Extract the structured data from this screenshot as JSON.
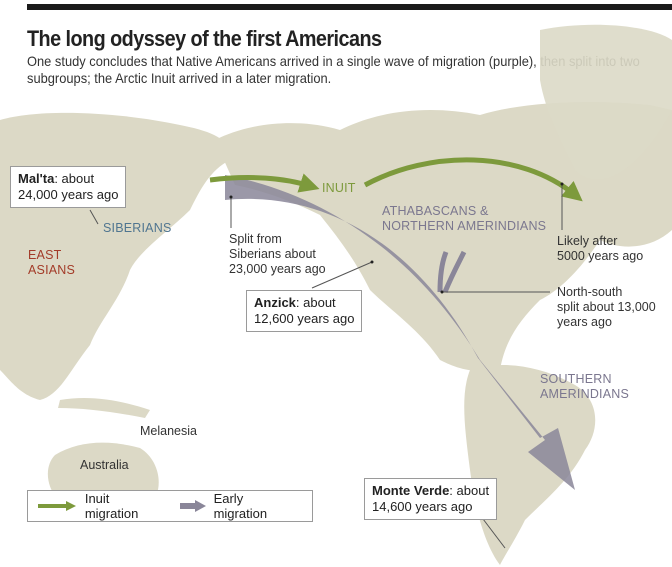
{
  "header": {
    "title": "The long odyssey of the first Americans",
    "subtitle": "One study concludes that Native Americans arrived in a single wave of migration (purple), then split into two subgroups; the Arctic Inuit arrived in a later migration."
  },
  "colors": {
    "land": "#dcd9c6",
    "inuit": "#7d9a3c",
    "early": "#8a8699",
    "siberians": "#4f7590",
    "east_asians": "#a33b28",
    "athabascans": "#7b778f"
  },
  "callouts": {
    "malta": {
      "name": "Mal'ta",
      "text": ": about",
      "line2": "24,000 years ago"
    },
    "anzick": {
      "name": "Anzick",
      "text": ": about",
      "line2": "12,600 years ago"
    },
    "monte_verde": {
      "name": "Monte Verde",
      "text": ": about",
      "line2": "14,600 years ago"
    }
  },
  "groups": {
    "siberians": "SIBERIANS",
    "east_asians": [
      "EAST",
      "ASIANS"
    ],
    "inuit": "INUIT",
    "athabascans": [
      "ATHABASCANS &",
      "NORTHERN AMERINDIANS"
    ],
    "southern": [
      "SOUTHERN",
      "AMERINDIANS"
    ]
  },
  "notes": {
    "split_siberians": [
      "Split from",
      "Siberians about",
      "23,000 years ago"
    ],
    "likely_after": [
      "Likely after",
      "5000 years ago"
    ],
    "north_south": [
      "North-south",
      "split about 13,000",
      "years ago"
    ]
  },
  "places": {
    "melanesia": "Melanesia",
    "australia": "Australia"
  },
  "legend": {
    "inuit": "Inuit migration",
    "early": "Early migration"
  }
}
